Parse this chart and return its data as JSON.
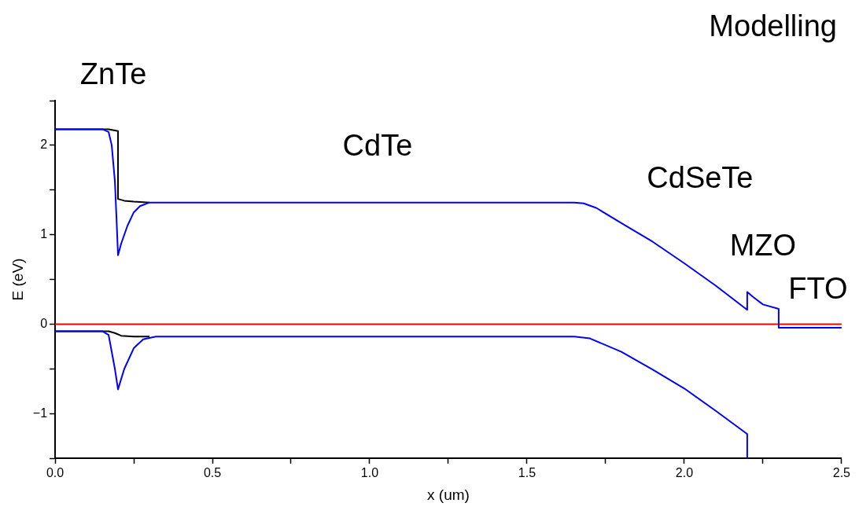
{
  "chart_data": {
    "type": "line",
    "title": "Modelling",
    "xlabel": "x (um)",
    "ylabel": "E (eV)",
    "annotations": [
      "ZnTe",
      "CdTe",
      "CdSeTe",
      "MZO",
      "FTO"
    ],
    "series": [
      {
        "color": "#000000",
        "x": [
          0,
          0.17,
          0.2,
          0.2,
          0.22,
          0.25,
          0.3
        ],
        "values": [
          2.18,
          2.18,
          2.16,
          1.4,
          1.38,
          1.37,
          1.36
        ]
      },
      {
        "color": "#000000",
        "x": [
          0,
          0.17,
          0.19,
          0.21,
          0.25,
          0.3
        ],
        "values": [
          -0.08,
          -0.08,
          -0.1,
          -0.13,
          -0.14,
          -0.14
        ]
      },
      {
        "color": "#0000ff",
        "x": [
          0,
          0.15,
          0.17,
          0.18,
          0.19,
          0.195,
          0.2,
          0.21,
          0.23,
          0.25,
          0.27,
          0.3,
          1.65,
          1.68,
          1.72,
          1.8,
          1.9,
          2.0,
          2.1,
          2.2,
          2.2,
          2.22,
          2.25,
          2.3,
          2.3,
          2.5
        ],
        "values": [
          2.18,
          2.18,
          2.15,
          2.0,
          1.6,
          1.2,
          0.77,
          0.9,
          1.1,
          1.25,
          1.32,
          1.36,
          1.36,
          1.35,
          1.3,
          1.13,
          0.92,
          0.68,
          0.43,
          0.16,
          0.36,
          0.3,
          0.22,
          0.17,
          -0.04,
          -0.04
        ]
      },
      {
        "color": "#0000ff",
        "x": [
          0,
          0.15,
          0.17,
          0.19,
          0.2,
          0.22,
          0.25,
          0.28,
          0.32,
          1.65,
          1.7,
          1.8,
          1.9,
          2.0,
          2.1,
          2.2,
          2.2
        ],
        "values": [
          -0.08,
          -0.08,
          -0.12,
          -0.5,
          -0.73,
          -0.5,
          -0.27,
          -0.17,
          -0.14,
          -0.14,
          -0.16,
          -0.31,
          -0.51,
          -0.72,
          -0.97,
          -1.23,
          -1.5
        ]
      }
    ],
    "ref_lines": [
      {
        "axis": "y",
        "value": 0,
        "color": "#ff0000"
      }
    ],
    "xlim": [
      0,
      2.5
    ],
    "ylim": [
      -1.5,
      2.5
    ],
    "xticks": [
      {
        "value": 0,
        "label": "0.0"
      },
      {
        "value": 0.25,
        "label": null
      },
      {
        "value": 0.5,
        "label": "0.5"
      },
      {
        "value": 0.75,
        "label": null
      },
      {
        "value": 1,
        "label": "1.0"
      },
      {
        "value": 1.25,
        "label": null
      },
      {
        "value": 1.5,
        "label": "1.5"
      },
      {
        "value": 1.75,
        "label": null
      },
      {
        "value": 2,
        "label": "2.0"
      },
      {
        "value": 2.25,
        "label": null
      },
      {
        "value": 2.5,
        "label": "2.5"
      }
    ],
    "yticks": [
      {
        "value": -1.5,
        "label": null
      },
      {
        "value": -1,
        "label": "−1"
      },
      {
        "value": -0.5,
        "label": null
      },
      0,
      {
        "value": 0.5,
        "label": null
      },
      1,
      {
        "value": 1.5,
        "label": null
      },
      2,
      {
        "value": 2.5,
        "label": null
      }
    ],
    "grid": false,
    "legend": false,
    "marker": "none",
    "line_style": "solid"
  }
}
